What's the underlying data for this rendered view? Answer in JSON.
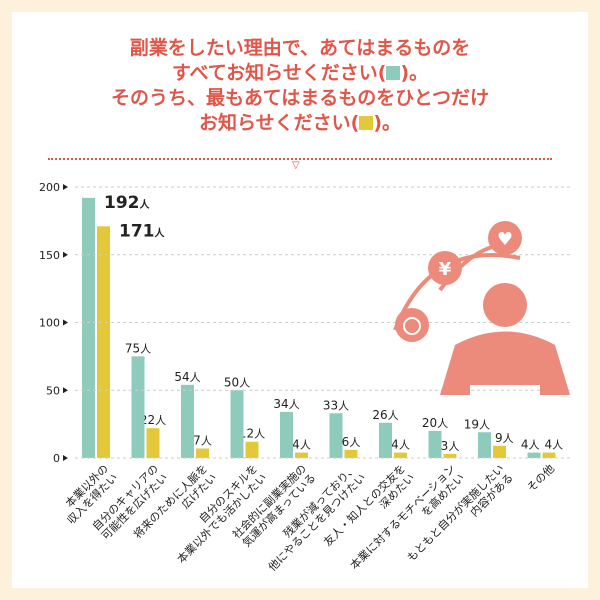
{
  "title": {
    "line1": "副業をしたい理由で、あてはまるものを",
    "line2a": "すべてお知らせください(",
    "line2b": ")。",
    "line3": "そのうち、最もあてはまるものをひとつだけ",
    "line4a": "お知らせください(",
    "line4b": ")。"
  },
  "colors": {
    "all": "#8ecbbd",
    "most": "#e3c93a",
    "accent": "#e0574a",
    "figure": "#ec8a7c"
  },
  "chart_data": {
    "type": "bar",
    "ylim": [
      0,
      200
    ],
    "yticks": [
      "0",
      "50",
      "100",
      "150",
      "200"
    ],
    "grid": true,
    "unit": "人",
    "categories": [
      "本業以外の\n収入を得たい",
      "自分のキャリアの\n可能性を広げたい",
      "将来のために人脈を\n広げたい",
      "自分のスキルを\n本業以外でも活かしたい",
      "社会的に副業実施の\n気運が高まっている",
      "残業が減っており、\n他にやることを見つけたい",
      "友人・知人との交友を\n深めたい",
      "本業に対するモチベーション\nを高めたい",
      "もともと自分が実施したい\n内容がある",
      "その他"
    ],
    "series": [
      {
        "values": [
          192,
          75,
          54,
          50,
          34,
          33,
          26,
          20,
          19,
          4
        ]
      },
      {
        "values": [
          171,
          22,
          7,
          12,
          4,
          6,
          4,
          3,
          9,
          4
        ]
      }
    ]
  }
}
